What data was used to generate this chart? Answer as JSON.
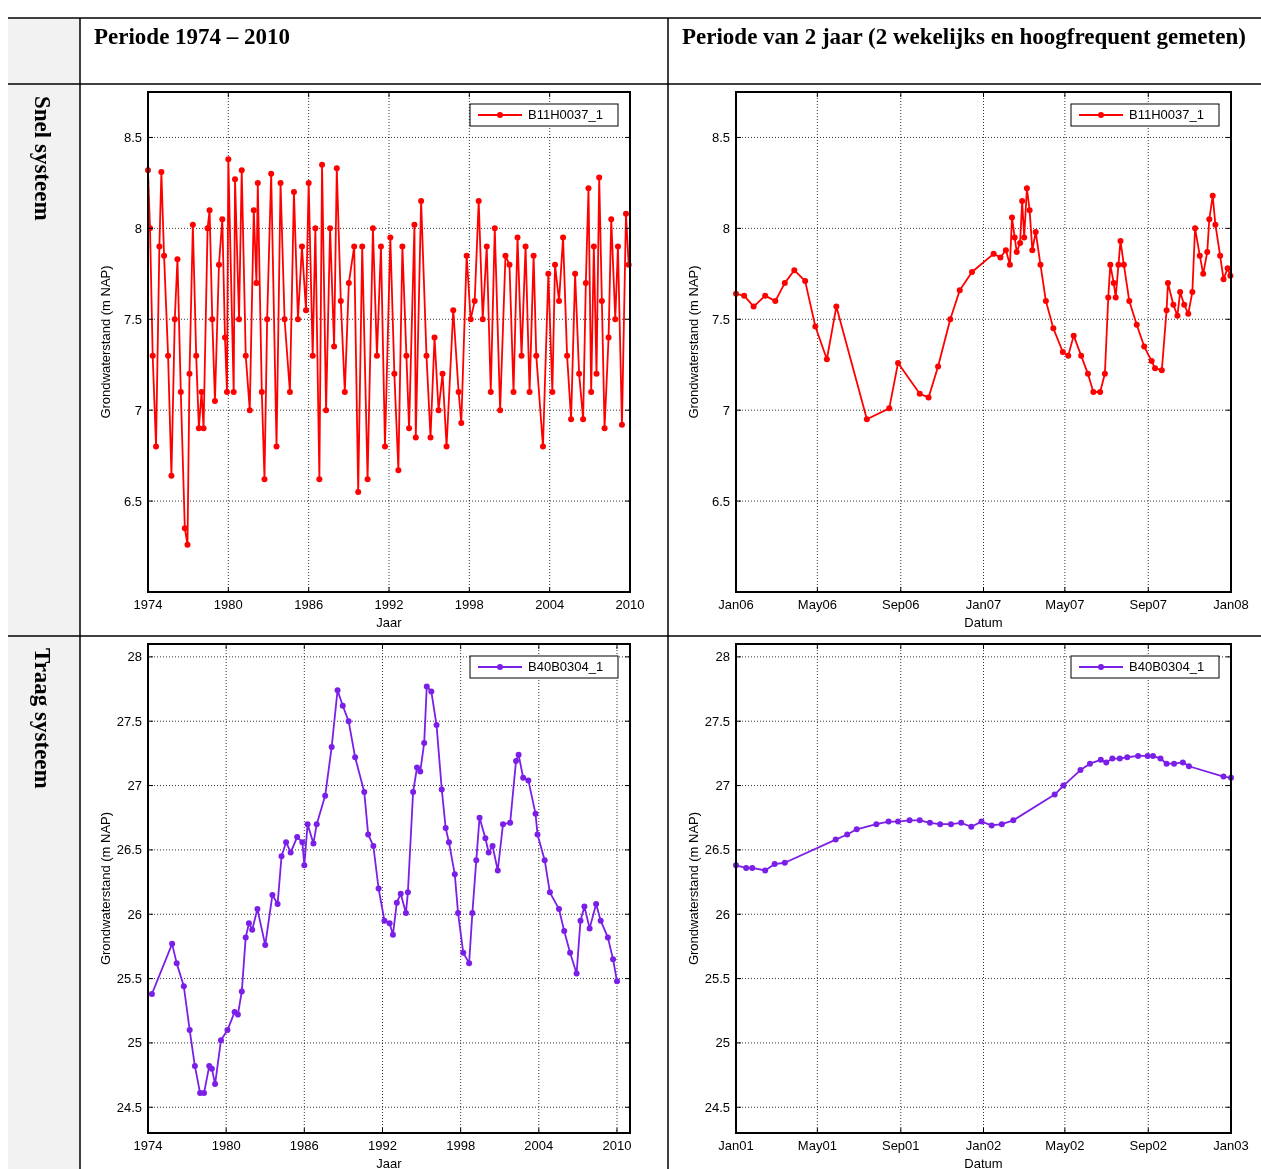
{
  "chart_data": [
    {
      "type": "line",
      "title": "Periode 1974 – 2010",
      "annotations": [
        "Snel systeem"
      ],
      "xlabel": "Jaar",
      "ylabel": "Grondwaterstand (m NAP)",
      "xlim": [
        1974,
        2010
      ],
      "xticks": [
        1974,
        1980,
        1986,
        1992,
        1998,
        2004,
        2010
      ],
      "ylim": [
        6,
        8.75
      ],
      "yticks": [
        6.5,
        7,
        7.5,
        8,
        8.5
      ],
      "grid": true,
      "legend": "top right",
      "marker": "circle",
      "series": [
        {
          "name": "B11H0037_1",
          "color": "#ff0000",
          "x": [
            1974.0,
            1974.15,
            1974.35,
            1974.6,
            1974.85,
            1975.0,
            1975.2,
            1975.5,
            1975.75,
            1976.0,
            1976.2,
            1976.45,
            1976.75,
            1976.95,
            1977.1,
            1977.35,
            1977.6,
            1977.8,
            1978.0,
            1978.15,
            1978.45,
            1978.6,
            1978.8,
            1979.0,
            1979.3,
            1979.55,
            1979.75,
            1979.9,
            1980.0,
            1980.4,
            1980.5,
            1980.8,
            1981.0,
            1981.3,
            1981.6,
            1981.9,
            1982.1,
            1982.2,
            1982.5,
            1982.7,
            1982.9,
            1983.2,
            1983.6,
            1983.9,
            1984.2,
            1984.6,
            1984.9,
            1985.2,
            1985.5,
            1985.8,
            1986.0,
            1986.3,
            1986.5,
            1986.8,
            1987.0,
            1987.3,
            1987.6,
            1987.9,
            1988.1,
            1988.4,
            1988.7,
            1989.0,
            1989.4,
            1989.7,
            1990.0,
            1990.4,
            1990.8,
            1991.1,
            1991.4,
            1991.7,
            1992.1,
            1992.4,
            1992.7,
            1993.0,
            1993.3,
            1993.5,
            1993.9,
            1994.0,
            1994.4,
            1994.8,
            1995.1,
            1995.4,
            1995.7,
            1996.0,
            1996.3,
            1996.8,
            1997.2,
            1997.4,
            1997.8,
            1998.1,
            1998.4,
            1998.7,
            1999.0,
            1999.3,
            1999.6,
            1999.9,
            2000.3,
            2000.7,
            2001.0,
            2001.3,
            2001.6,
            2001.9,
            2002.2,
            2002.5,
            2002.8,
            2003.0,
            2003.5,
            2003.9,
            2004.2,
            2004.4,
            2004.7,
            2005.0,
            2005.3,
            2005.6,
            2005.9,
            2006.2,
            2006.5,
            2006.7,
            2006.9,
            2007.1,
            2007.3,
            2007.5,
            2007.7,
            2007.9,
            2008.1,
            2008.4,
            2008.6,
            2008.9,
            2009.1,
            2009.4,
            2009.7,
            2009.9
          ],
          "values": [
            8.32,
            8.0,
            7.3,
            6.8,
            7.9,
            8.31,
            7.85,
            7.3,
            6.64,
            7.5,
            7.83,
            7.1,
            6.35,
            6.26,
            7.2,
            8.02,
            7.3,
            6.9,
            7.1,
            6.9,
            8.0,
            8.1,
            7.5,
            7.05,
            7.8,
            8.05,
            7.4,
            7.1,
            8.38,
            7.1,
            8.27,
            7.5,
            8.32,
            7.3,
            7.0,
            8.1,
            7.7,
            8.25,
            7.1,
            6.62,
            7.5,
            8.3,
            6.8,
            8.25,
            7.5,
            7.1,
            8.2,
            7.5,
            7.9,
            7.55,
            8.25,
            7.3,
            8.0,
            6.62,
            8.35,
            7.0,
            8.0,
            7.35,
            8.33,
            7.6,
            7.1,
            7.7,
            7.9,
            6.55,
            7.9,
            6.62,
            8.0,
            7.3,
            7.9,
            6.8,
            7.95,
            7.2,
            6.67,
            7.9,
            7.3,
            6.9,
            8.02,
            6.85,
            8.15,
            7.3,
            6.85,
            7.4,
            7.0,
            7.2,
            6.8,
            7.55,
            7.1,
            6.93,
            7.85,
            7.5,
            7.6,
            8.15,
            7.5,
            7.9,
            7.1,
            8.0,
            7.0,
            7.85,
            7.8,
            7.1,
            7.95,
            7.3,
            7.9,
            7.1,
            7.85,
            7.3,
            6.8,
            7.75,
            7.1,
            7.8,
            7.6,
            7.95,
            7.3,
            6.95,
            7.75,
            7.2,
            6.95,
            7.7,
            8.22,
            7.1,
            7.9,
            7.2,
            8.28,
            7.6,
            6.9,
            7.4,
            8.05,
            7.5,
            7.9,
            6.92,
            8.08,
            7.8
          ]
        }
      ]
    },
    {
      "type": "line",
      "title": "Periode van 2 jaar (2 wekelijks en hoogfrequent gemeten)",
      "xlabel": "Datum",
      "ylabel": "Grondwaterstand (m NAP)",
      "xlim": [
        "2006-01-01",
        "2008-01-01"
      ],
      "xticks": [
        {
          "value": "2006-01-01",
          "label": "Jan06"
        },
        {
          "value": "2006-05-01",
          "label": "May06"
        },
        {
          "value": "2006-09-01",
          "label": "Sep06"
        },
        {
          "value": "2007-01-01",
          "label": "Jan07"
        },
        {
          "value": "2007-05-01",
          "label": "May07"
        },
        {
          "value": "2007-09-01",
          "label": "Sep07"
        },
        {
          "value": "2008-01-01",
          "label": "Jan08"
        }
      ],
      "ylim": [
        6,
        8.75
      ],
      "yticks": [
        6.5,
        7,
        7.5,
        8,
        8.5
      ],
      "grid": true,
      "legend": "top right",
      "marker": "circle",
      "series": [
        {
          "name": "B11H0037_1",
          "color": "#ff0000",
          "x": [
            "2006-01-01",
            "2006-01-13",
            "2006-01-27",
            "2006-02-13",
            "2006-02-28",
            "2006-03-14",
            "2006-03-28",
            "2006-04-13",
            "2006-04-28",
            "2006-05-15",
            "2006-05-29",
            "2006-07-13",
            "2006-08-15",
            "2006-08-28",
            "2006-09-29",
            "2006-10-12",
            "2006-10-26",
            "2006-11-13",
            "2006-11-27",
            "2006-12-15",
            "2007-01-16",
            "2007-01-26",
            "2007-02-03",
            "2007-02-09",
            "2007-02-12",
            "2007-02-16",
            "2007-02-19",
            "2007-02-24",
            "2007-02-27",
            "2007-03-02",
            "2007-03-06",
            "2007-03-10",
            "2007-03-14",
            "2007-03-19",
            "2007-03-26",
            "2007-04-03",
            "2007-04-14",
            "2007-04-28",
            "2007-05-06",
            "2007-05-14",
            "2007-05-25",
            "2007-06-04",
            "2007-06-12",
            "2007-06-22",
            "2007-06-29",
            "2007-07-04",
            "2007-07-07",
            "2007-07-12",
            "2007-07-15",
            "2007-07-19",
            "2007-07-22",
            "2007-07-27",
            "2007-08-04",
            "2007-08-15",
            "2007-08-26",
            "2007-09-06",
            "2007-09-11",
            "2007-09-21",
            "2007-09-28",
            "2007-09-30",
            "2007-10-08",
            "2007-10-14",
            "2007-10-18",
            "2007-10-24",
            "2007-10-30",
            "2007-11-05",
            "2007-11-09",
            "2007-11-16",
            "2007-11-21",
            "2007-11-27",
            "2007-11-30",
            "2007-12-05",
            "2007-12-09",
            "2007-12-16",
            "2007-12-21",
            "2007-12-27",
            "2007-12-31"
          ],
          "values": [
            7.64,
            7.63,
            7.57,
            7.63,
            7.6,
            7.7,
            7.77,
            7.71,
            7.46,
            7.28,
            7.57,
            6.95,
            7.01,
            7.26,
            7.09,
            7.07,
            7.24,
            7.5,
            7.66,
            7.76,
            7.86,
            7.84,
            7.88,
            7.8,
            8.06,
            7.95,
            7.87,
            7.92,
            8.15,
            7.95,
            8.22,
            8.1,
            7.88,
            7.98,
            7.8,
            7.6,
            7.45,
            7.32,
            7.3,
            7.41,
            7.3,
            7.2,
            7.1,
            7.1,
            7.2,
            7.62,
            7.8,
            7.7,
            7.62,
            7.8,
            7.93,
            7.8,
            7.6,
            7.47,
            7.35,
            7.27,
            7.23,
            7.22,
            7.55,
            7.7,
            7.58,
            7.52,
            7.65,
            7.58,
            7.53,
            7.65,
            8.0,
            7.85,
            7.75,
            7.87,
            8.05,
            8.18,
            8.02,
            7.85,
            7.72,
            7.78,
            7.74
          ]
        }
      ]
    },
    {
      "type": "line",
      "annotations": [
        "Traag systeem"
      ],
      "xlabel": "Jaar",
      "ylabel": "Grondwaterstand (m NAP)",
      "xlim": [
        1974,
        2011
      ],
      "xticks": [
        1974,
        1980,
        1986,
        1992,
        1998,
        2004,
        2010
      ],
      "ylim": [
        24.3,
        28.1
      ],
      "yticks": [
        24.5,
        25,
        25.5,
        26,
        26.5,
        27,
        27.5,
        28
      ],
      "grid": true,
      "legend": "top right",
      "marker": "circle",
      "series": [
        {
          "name": "B40B0304_1",
          "color": "#7b1fe8",
          "x": [
            1974.3,
            1975.85,
            1976.2,
            1976.75,
            1977.2,
            1977.6,
            1978.0,
            1978.3,
            1978.7,
            1978.9,
            1979.15,
            1979.6,
            1980.1,
            1980.65,
            1980.9,
            1981.2,
            1981.5,
            1981.75,
            1982.0,
            1982.4,
            1983.0,
            1983.55,
            1983.95,
            1984.25,
            1984.6,
            1984.95,
            1985.45,
            1985.85,
            1986.0,
            1986.25,
            1986.7,
            1986.95,
            1987.6,
            1988.1,
            1988.55,
            1988.95,
            1989.4,
            1989.9,
            1990.6,
            1990.9,
            1991.3,
            1991.7,
            1992.15,
            1992.55,
            1992.8,
            1993.1,
            1993.4,
            1993.8,
            1993.95,
            1994.35,
            1994.65,
            1994.9,
            1995.2,
            1995.4,
            1995.75,
            1996.15,
            1996.55,
            1996.85,
            1997.1,
            1997.55,
            1997.8,
            1998.2,
            1998.65,
            1998.9,
            1999.2,
            1999.45,
            1999.9,
            2000.15,
            2000.45,
            2000.85,
            2001.25,
            2001.8,
            2002.25,
            2002.45,
            2002.8,
            2003.2,
            2003.75,
            2003.9,
            2004.45,
            2004.85,
            2005.55,
            2005.95,
            2006.4,
            2006.9,
            2007.2,
            2007.5,
            2007.9,
            2008.4,
            2008.75,
            2009.3,
            2009.7,
            2010.0
          ],
          "values": [
            25.38,
            25.77,
            25.62,
            25.44,
            25.1,
            24.82,
            24.61,
            24.61,
            24.82,
            24.8,
            24.68,
            25.02,
            25.1,
            25.24,
            25.22,
            25.4,
            25.82,
            25.93,
            25.88,
            26.04,
            25.76,
            26.15,
            26.08,
            26.45,
            26.56,
            26.48,
            26.6,
            26.56,
            26.38,
            26.7,
            26.55,
            26.7,
            26.92,
            27.3,
            27.74,
            27.62,
            27.5,
            27.22,
            26.95,
            26.62,
            26.53,
            26.2,
            25.95,
            25.93,
            25.84,
            26.09,
            26.16,
            26.01,
            26.17,
            26.95,
            27.14,
            27.11,
            27.33,
            27.77,
            27.73,
            27.47,
            26.97,
            26.67,
            26.56,
            26.31,
            26.01,
            25.7,
            25.62,
            26.01,
            26.42,
            26.75,
            26.59,
            26.48,
            26.53,
            26.34,
            26.7,
            26.71,
            27.19,
            27.24,
            27.06,
            27.04,
            26.78,
            26.62,
            26.42,
            26.17,
            26.04,
            25.87,
            25.7,
            25.54,
            25.95,
            26.06,
            25.89,
            26.08,
            25.95,
            25.82,
            25.65,
            25.48
          ]
        }
      ]
    },
    {
      "type": "line",
      "xlabel": "Datum",
      "ylabel": "Grondwaterstand (m NAP)",
      "xlim": [
        "2001-01-01",
        "2003-01-01"
      ],
      "xticks": [
        {
          "value": "2001-01-01",
          "label": "Jan01"
        },
        {
          "value": "2001-05-01",
          "label": "May01"
        },
        {
          "value": "2001-09-01",
          "label": "Sep01"
        },
        {
          "value": "2002-01-01",
          "label": "Jan02"
        },
        {
          "value": "2002-05-01",
          "label": "May02"
        },
        {
          "value": "2002-09-01",
          "label": "Sep02"
        },
        {
          "value": "2003-01-01",
          "label": "Jan03"
        }
      ],
      "ylim": [
        24.3,
        28.1
      ],
      "yticks": [
        24.5,
        25,
        25.5,
        26,
        26.5,
        27,
        27.5,
        28
      ],
      "grid": true,
      "legend": "top right",
      "marker": "circle",
      "series": [
        {
          "name": "B40B0304_1",
          "color": "#7b1fe8",
          "x": [
            "2001-01-01",
            "2001-01-16",
            "2001-01-25",
            "2001-02-13",
            "2001-02-27",
            "2001-03-14",
            "2001-05-28",
            "2001-06-14",
            "2001-06-28",
            "2001-07-27",
            "2001-08-14",
            "2001-08-28",
            "2001-09-14",
            "2001-09-29",
            "2001-10-14",
            "2001-10-29",
            "2001-11-14",
            "2001-11-29",
            "2001-12-14",
            "2001-12-29",
            "2002-01-13",
            "2002-01-28",
            "2002-02-14",
            "2002-04-16",
            "2002-04-29",
            "2002-05-24",
            "2002-06-07",
            "2002-06-23",
            "2002-07-01",
            "2002-07-10",
            "2002-07-21",
            "2002-08-01",
            "2002-08-17",
            "2002-08-31",
            "2002-09-08",
            "2002-09-19",
            "2002-09-28",
            "2002-10-09",
            "2002-10-22",
            "2002-10-31",
            "2002-12-21",
            "2003-01-01"
          ],
          "values": [
            26.38,
            26.36,
            26.36,
            26.34,
            26.39,
            26.4,
            26.58,
            26.62,
            26.66,
            26.7,
            26.72,
            26.72,
            26.73,
            26.73,
            26.71,
            26.7,
            26.7,
            26.71,
            26.68,
            26.72,
            26.69,
            26.7,
            26.73,
            26.93,
            27.0,
            27.12,
            27.17,
            27.2,
            27.18,
            27.21,
            27.21,
            27.22,
            27.23,
            27.23,
            27.23,
            27.21,
            27.17,
            27.17,
            27.18,
            27.15,
            27.07,
            27.06
          ]
        }
      ]
    }
  ]
}
